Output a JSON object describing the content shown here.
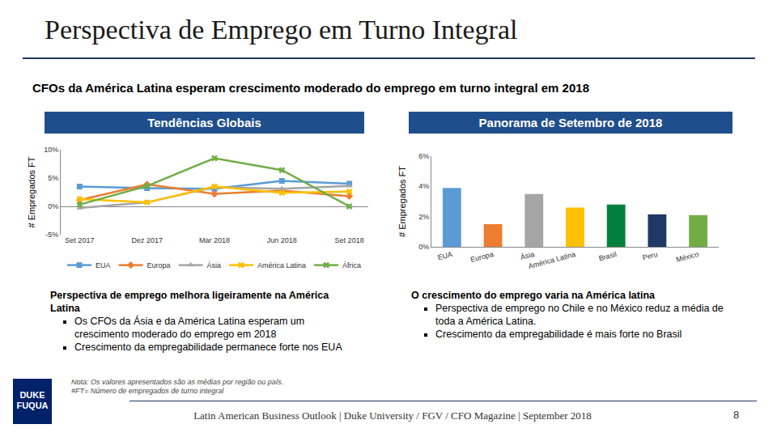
{
  "slide": {
    "title": "Perspectiva de Emprego em Turno Integral",
    "subtitle": "CFOs da América Latina esperam crescimento moderado do emprego em turno integral em 2018",
    "left_panel": {
      "header": "Tendências Globais",
      "lead": "Perspectiva de emprego melhora ligeiramente na América Latina",
      "bullets": [
        "Os CFOs da Ásia e da América Latina esperam um crescimento moderado do emprego em 2018",
        "Crescimento da empregabilidade permanece forte nos EUA"
      ]
    },
    "right_panel": {
      "header": "Panorama de Setembro de 2018",
      "lead": "O crescimento do emprego varia na América latina",
      "bullets": [
        "Perspectiva de emprego no Chile e no México reduz a média de toda a América Latina.",
        "Crescimento da empregabilidade é mais forte no Brasil"
      ]
    },
    "note": [
      "Nota: Os valores apresentados são as médias por região ou país.",
      "#FT= Número de empregados de turno integral"
    ],
    "logo": [
      "DUKE",
      "FUQUA"
    ],
    "footer": "Latin American Business Outlook | Duke University / FGV / CFO Magazine | September 2018",
    "page": "8"
  },
  "chart_data": [
    {
      "type": "line",
      "ylabel": "# Empregados FT",
      "categories": [
        "Set 2017",
        "Dez 2017",
        "Mar 2018",
        "Jun 2018",
        "Set 2018"
      ],
      "series": [
        {
          "name": "EUA",
          "color": "#5b9bd5",
          "marker": "square",
          "values": [
            3.5,
            3.2,
            3.1,
            4.5,
            4.0
          ]
        },
        {
          "name": "Europa",
          "color": "#ed7d31",
          "marker": "diamond",
          "values": [
            1.1,
            3.9,
            2.2,
            2.8,
            1.8
          ]
        },
        {
          "name": "Ásia",
          "color": "#a5a5a5",
          "marker": "triangle-up",
          "values": [
            -0.3,
            0.7,
            3.4,
            3.1,
            3.6
          ]
        },
        {
          "name": "América Latina",
          "color": "#ffc000",
          "marker": "x",
          "values": [
            1.3,
            0.7,
            3.5,
            2.4,
            2.6
          ]
        },
        {
          "name": "África",
          "color": "#70ad47",
          "marker": "x",
          "values": [
            0.3,
            3.6,
            8.5,
            6.4,
            0.0
          ]
        }
      ],
      "ylim": [
        -5,
        10
      ],
      "yticks": [
        {
          "value": -5,
          "label": "-5%"
        },
        {
          "value": 0,
          "label": "0%"
        },
        {
          "value": 5,
          "label": "5%"
        },
        {
          "value": 10,
          "label": "10%"
        }
      ],
      "grid": false,
      "legend": "bottom"
    },
    {
      "type": "bar",
      "ylabel": "# Empregados FT",
      "categories": [
        "EUA",
        "Europa",
        "Ásia",
        "América Latina",
        "Brasil",
        "Peru",
        "México"
      ],
      "values": [
        3.9,
        1.5,
        3.5,
        2.6,
        2.8,
        2.15,
        2.1
      ],
      "colors": [
        "#5b9bd5",
        "#ed7d31",
        "#a5a5a5",
        "#ffc000",
        "#00803c",
        "#1f3864",
        "#70ad47"
      ],
      "ylim": [
        0,
        6
      ],
      "yticks": [
        {
          "value": 0,
          "label": "0%"
        },
        {
          "value": 2,
          "label": "2%"
        },
        {
          "value": 4,
          "label": "4%"
        },
        {
          "value": 6,
          "label": "6%"
        }
      ],
      "grid": false
    }
  ]
}
